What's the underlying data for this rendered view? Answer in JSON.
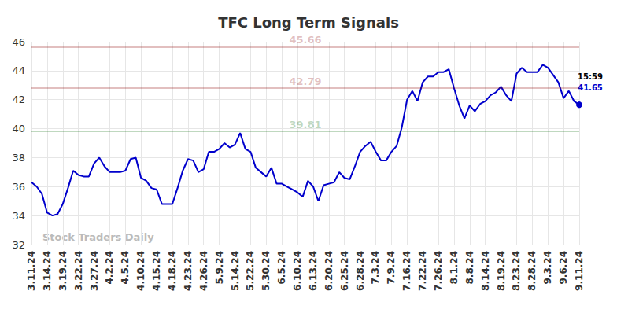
{
  "chart_data": {
    "type": "line",
    "title": "TFC Long Term Signals",
    "watermark": "Stock Traders Daily",
    "end_label": "15:59",
    "color": "#0000cc",
    "grid": true,
    "ylim": [
      32,
      46
    ],
    "yticks": [
      32,
      34,
      36,
      38,
      40,
      42,
      44,
      46
    ],
    "levels": [
      {
        "value": 45.66,
        "color": "#8b0000"
      },
      {
        "value": 42.79,
        "color": "#8b0000"
      },
      {
        "value": 39.81,
        "color": "#006400"
      }
    ],
    "categories": [
      "3.11.24",
      null,
      null,
      "3.14.24",
      null,
      null,
      "3.19.24",
      null,
      null,
      "3.22.24",
      null,
      null,
      "3.27.24",
      null,
      null,
      "4.2.24",
      null,
      null,
      "4.5.24",
      null,
      null,
      "4.10.24",
      null,
      null,
      "4.15.24",
      null,
      null,
      "4.18.24",
      null,
      null,
      "4.23.24",
      null,
      null,
      "4.26.24",
      null,
      null,
      "5.9.24",
      null,
      null,
      "5.14.24",
      null,
      null,
      "5.22.24",
      null,
      null,
      "5.30.24",
      null,
      null,
      "6.5.24",
      null,
      null,
      "6.10.24",
      null,
      null,
      "6.13.24",
      null,
      null,
      "6.20.24",
      null,
      null,
      "6.25.24",
      null,
      null,
      "6.28.24",
      null,
      null,
      "7.3.24",
      null,
      null,
      "7.9.24",
      null,
      null,
      "7.16.24",
      null,
      null,
      "7.22.24",
      null,
      null,
      "7.26.24",
      null,
      null,
      "8.1.24",
      null,
      null,
      "8.8.24",
      null,
      null,
      "8.14.24",
      null,
      null,
      "8.19.24",
      null,
      null,
      "8.23.24",
      null,
      null,
      "8.28.24",
      null,
      null,
      "9.3.24",
      null,
      null,
      "9.6.24",
      null,
      null,
      "9.11.24"
    ],
    "values": [
      36.3,
      36.0,
      35.5,
      34.2,
      34.0,
      34.1,
      34.8,
      35.9,
      37.1,
      36.8,
      36.7,
      36.7,
      37.6,
      38.0,
      37.4,
      37.0,
      37.0,
      37.0,
      37.1,
      37.9,
      38.0,
      36.6,
      36.4,
      35.9,
      35.8,
      34.8,
      34.8,
      34.8,
      35.9,
      37.1,
      37.9,
      37.8,
      37.0,
      37.2,
      38.4,
      38.4,
      38.6,
      39.0,
      38.7,
      38.9,
      39.7,
      38.6,
      38.4,
      37.3,
      37.0,
      36.7,
      37.3,
      36.2,
      36.2,
      36.0,
      35.8,
      35.6,
      35.3,
      36.4,
      36.0,
      35.0,
      36.1,
      36.2,
      36.3,
      37.0,
      36.6,
      36.5,
      37.4,
      38.4,
      38.8,
      39.1,
      38.4,
      37.8,
      37.8,
      38.4,
      38.8,
      40.1,
      42.0,
      42.6,
      41.9,
      43.2,
      43.6,
      43.6,
      43.9,
      43.9,
      44.1,
      42.8,
      41.6,
      40.7,
      41.6,
      41.2,
      41.7,
      41.9,
      42.3,
      42.5,
      42.9,
      42.3,
      41.9,
      43.8,
      44.2,
      43.9,
      43.9,
      43.9,
      44.4,
      44.2,
      43.7,
      43.2,
      42.1,
      42.6,
      41.9,
      41.65
    ]
  }
}
